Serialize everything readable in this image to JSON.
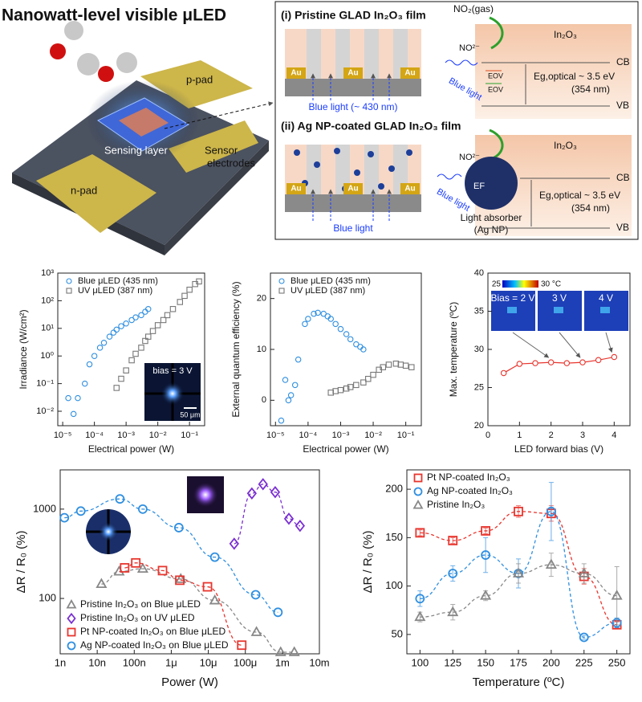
{
  "header": {
    "title": "Nanowatt-level visible μLED"
  },
  "device": {
    "p_pad": "p-pad",
    "sensing_layer": "Sensing layer",
    "sensor_electrodes": [
      "Sensor",
      "electrodes"
    ],
    "n_pad": "n-pad"
  },
  "panel_i": {
    "title": "(i) Pristine GLAD In₂O₃ film",
    "electrodes": [
      "Au",
      "Au",
      "Au"
    ],
    "light": "Blue light (~ 430 nm)",
    "gas": "NO₂(gas)",
    "ion": "NO²⁻",
    "wave_label": "Blue light",
    "material": "In₂O₃",
    "cb": "CB",
    "vb": "VB",
    "defect_levels": [
      "EOV",
      "EOV"
    ],
    "bandgap": "Eg,optical ~ 3.5 eV",
    "wavelength": "(354 nm)"
  },
  "panel_ii": {
    "title": "(ii) Ag NP-coated GLAD In₂O₃ film",
    "electrodes": [
      "Au",
      "Au",
      "Au"
    ],
    "light": "Blue light",
    "ion": "NO²⁻",
    "wave_label": "Blue light",
    "fermi": "EF",
    "absorber": [
      "Light absorber",
      "(Ag NP)"
    ],
    "material": "In₂O₃",
    "cb": "CB",
    "vb": "VB",
    "bandgap": "Eg,optical ~ 3.5 eV",
    "wavelength": "(354 nm)"
  },
  "chart_data": [
    {
      "type": "scatter",
      "x_label": "Electrical power (W)",
      "y_label": "Irradiance (W/cm²)",
      "xlog": true,
      "ylog": true,
      "xlim": [
        7e-06,
        0.3
      ],
      "ylim": [
        0.003,
        1000
      ],
      "xticks": [
        {
          "value": 1e-05,
          "label": "10⁻⁵"
        },
        {
          "value": 0.0001,
          "label": "10⁻⁴"
        },
        {
          "value": 0.001,
          "label": "10⁻³"
        },
        {
          "value": 0.01,
          "label": "10⁻²"
        },
        {
          "value": 0.1,
          "label": "10⁻¹"
        }
      ],
      "yticks": [
        {
          "value": 0.01,
          "label": "10⁻²"
        },
        {
          "value": 0.1,
          "label": "10⁻¹"
        },
        {
          "value": 1,
          "label": "10⁰"
        },
        {
          "value": 10,
          "label": "10¹"
        },
        {
          "value": 100,
          "label": "10²"
        },
        {
          "value": 1000,
          "label": "10³"
        }
      ],
      "legend": "upper left",
      "series": [
        {
          "name": "Blue μLED (435 nm)",
          "color": "#2f8fe0",
          "marker": "circle",
          "x": [
            1.5e-05,
            2.2e-05,
            3e-05,
            5e-05,
            7e-05,
            0.0001,
            0.00015,
            0.0002,
            0.0003,
            0.0004,
            0.0005,
            0.0007,
            0.001,
            0.0015,
            0.002,
            0.003,
            0.004,
            0.005
          ],
          "values": [
            0.03,
            0.008,
            0.03,
            0.1,
            0.5,
            1,
            2,
            3,
            5,
            7,
            9,
            12,
            15,
            20,
            25,
            30,
            40,
            50
          ]
        },
        {
          "name": "UV μLED (387 nm)",
          "color": "#777777",
          "marker": "square",
          "x": [
            0.0005,
            0.0007,
            0.001,
            0.0015,
            0.002,
            0.003,
            0.004,
            0.005,
            0.007,
            0.01,
            0.015,
            0.02,
            0.03,
            0.05,
            0.07,
            0.1,
            0.15,
            0.2
          ],
          "values": [
            0.07,
            0.15,
            0.3,
            0.7,
            1.2,
            2,
            3.5,
            5,
            8,
            13,
            20,
            30,
            50,
            90,
            150,
            250,
            400,
            500
          ]
        }
      ],
      "inset_labels": [
        "bias = 3 V",
        "50 μm"
      ]
    },
    {
      "type": "scatter",
      "x_label": "Electrical power (W)",
      "y_label": "External quantum efficiency (%)",
      "xlog": true,
      "ylog": false,
      "xlim": [
        7e-06,
        0.3
      ],
      "ylim": [
        -5,
        25
      ],
      "xticks": [
        {
          "value": 1e-05,
          "label": "10⁻⁵"
        },
        {
          "value": 0.0001,
          "label": "10⁻⁴"
        },
        {
          "value": 0.001,
          "label": "10⁻³"
        },
        {
          "value": 0.01,
          "label": "10⁻²"
        },
        {
          "value": 0.1,
          "label": "10⁻¹"
        }
      ],
      "yticks": [
        0,
        10,
        20
      ],
      "legend": "upper left",
      "series": [
        {
          "name": "Blue μLED (435 nm)",
          "color": "#2f8fe0",
          "marker": "circle",
          "x": [
            1.5e-05,
            2e-05,
            2.5e-05,
            3e-05,
            4e-05,
            5e-05,
            8e-05,
            0.0001,
            0.00015,
            0.0002,
            0.0003,
            0.0004,
            0.0005,
            0.0007,
            0.001,
            0.0015,
            0.002,
            0.003,
            0.004,
            0.005
          ],
          "values": [
            -4,
            4,
            0,
            1,
            3,
            8,
            15,
            16,
            17,
            17.2,
            17,
            16.5,
            16,
            15,
            14,
            13,
            12,
            11,
            10.5,
            10
          ]
        },
        {
          "name": "UV μLED (387 nm)",
          "color": "#777777",
          "marker": "square",
          "x": [
            0.0005,
            0.0007,
            0.001,
            0.0015,
            0.002,
            0.003,
            0.005,
            0.007,
            0.01,
            0.015,
            0.02,
            0.03,
            0.05,
            0.07,
            0.1,
            0.15
          ],
          "values": [
            1.5,
            1.8,
            2,
            2.3,
            2.6,
            3,
            3.5,
            4.2,
            5,
            6,
            6.5,
            7,
            7.2,
            7,
            6.8,
            6.5
          ]
        }
      ]
    },
    {
      "type": "scatter",
      "x_label": "LED forward bias (V)",
      "y_label": "Max. temperature (ºC)",
      "xlog": false,
      "ylog": false,
      "xlim": [
        0,
        4.5
      ],
      "ylim": [
        20,
        40
      ],
      "xticks": [
        0,
        1,
        2,
        3,
        4
      ],
      "yticks": [
        20,
        25,
        30,
        35,
        40
      ],
      "series": [
        {
          "color": "#e8352e",
          "marker": "circle",
          "line": "solid",
          "x": [
            0.5,
            1,
            1.5,
            2,
            2.5,
            3,
            3.5,
            4
          ],
          "values": [
            26.9,
            28.1,
            28.2,
            28.3,
            28.2,
            28.3,
            28.6,
            29.0
          ]
        }
      ],
      "inset_labels": [
        "Bias = 2 V",
        "3 V",
        "4 V"
      ],
      "colorbar_labels": [
        "25",
        "30 °C"
      ]
    },
    {
      "type": "scatter",
      "x_label": "Power (W)",
      "y_label": "ΔR / R₀ (%)",
      "xlog": true,
      "ylog": true,
      "xlim": [
        1e-09,
        0.01
      ],
      "ylim": [
        24,
        2750
      ],
      "xticks": [
        {
          "value": 1e-09,
          "label": "1n"
        },
        {
          "value": 1e-08,
          "label": "10n"
        },
        {
          "value": 1e-07,
          "label": "100n"
        },
        {
          "value": 1e-06,
          "label": "1μ"
        },
        {
          "value": 1e-05,
          "label": "10μ"
        },
        {
          "value": 0.0001,
          "label": "100μ"
        },
        {
          "value": 0.001,
          "label": "1m"
        },
        {
          "value": 0.01,
          "label": "10m"
        }
      ],
      "yticks": [
        100,
        1000
      ],
      "legend": "lower left",
      "series": [
        {
          "name": "Pristine In₂O₃ on Blue μLED",
          "color": "#888888",
          "marker": "triangle",
          "line": "dashed",
          "x": [
            1.3e-08,
            3.9e-08,
            1.7e-07,
            1.8e-06,
            1.5e-05,
            0.0002,
            0.0009,
            0.0021
          ],
          "values": [
            145,
            200,
            215,
            165,
            95,
            42,
            25,
            25
          ]
        },
        {
          "name": "Pristine In₂O₃ on UV μLED",
          "color": "#7a2fd1",
          "marker": "diamond",
          "line": "dashed",
          "x": [
            5e-05,
            0.00015,
            0.0003,
            0.00064,
            0.0015,
            0.003
          ],
          "values": [
            410,
            1500,
            1900,
            1550,
            780,
            650
          ]
        },
        {
          "name": "Pt NP-coated In₂O₃ on Blue μLED",
          "color": "#e8352e",
          "marker": "square",
          "line": "dashed",
          "x": [
            5.5e-08,
            1.1e-07,
            5.8e-07,
            1.7e-06,
            9.5e-06,
            8e-05
          ],
          "values": [
            220,
            250,
            205,
            160,
            135,
            30
          ]
        },
        {
          "name": "Ag NP-coated In₂O₃ on Blue μLED",
          "color": "#2f8fe0",
          "marker": "circle",
          "line": "dashed",
          "x": [
            1.3e-09,
            3.6e-09,
            4.1e-08,
            1.7e-07,
            1.6e-06,
            1.5e-05,
            0.00019,
            0.00076
          ],
          "values": [
            800,
            950,
            1300,
            1000,
            620,
            290,
            110,
            70
          ]
        }
      ]
    },
    {
      "type": "scatter",
      "x_label": "Temperature (ºC)",
      "y_label": "ΔR / R₀ (%)",
      "xlog": false,
      "ylog": false,
      "xlim": [
        90,
        260
      ],
      "ylim": [
        30,
        220
      ],
      "xticks": [
        100,
        125,
        150,
        175,
        200,
        225,
        250
      ],
      "yticks": [
        50,
        100,
        150,
        200
      ],
      "legend": "upper left",
      "series": [
        {
          "name": "Pt NP-coated In₂O₃",
          "color": "#e8352e",
          "marker": "square",
          "line": "dashed",
          "x": [
            100,
            125,
            150,
            175,
            200,
            225,
            250
          ],
          "values": [
            155,
            147,
            157,
            177,
            175,
            110,
            60
          ],
          "errors": [
            3,
            3,
            3,
            6,
            8,
            8,
            3
          ]
        },
        {
          "name": "Ag NP-coated In₂O₃",
          "color": "#2f8fe0",
          "marker": "circle",
          "line": "dashed",
          "x": [
            100,
            125,
            150,
            175,
            200,
            225,
            250
          ],
          "values": [
            87,
            113,
            132,
            113,
            177,
            47,
            62
          ],
          "errors": [
            8,
            8,
            18,
            15,
            30,
            2,
            5
          ]
        },
        {
          "name": "Pristine In₂O₃",
          "color": "#888888",
          "marker": "triangle",
          "line": "dashed",
          "x": [
            100,
            125,
            150,
            175,
            200,
            225,
            250
          ],
          "values": [
            68,
            73,
            90,
            113,
            122,
            113,
            90
          ],
          "errors": [
            5,
            8,
            5,
            10,
            12,
            10,
            30
          ]
        }
      ]
    }
  ]
}
